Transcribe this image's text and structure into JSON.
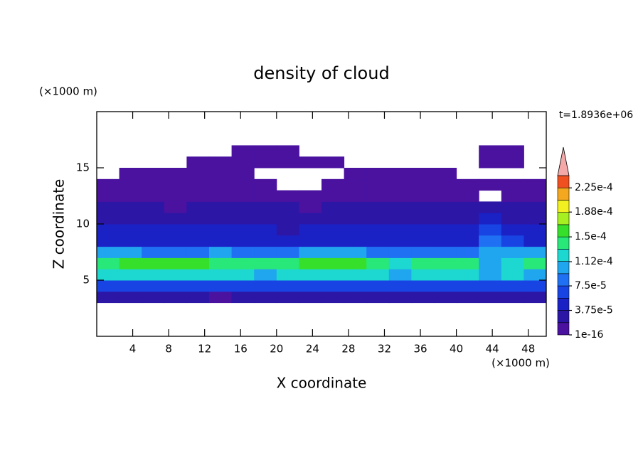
{
  "chart_data": {
    "type": "contour",
    "title": "density of cloud",
    "x_label": "X coordinate",
    "y_label": "Z coordinate",
    "x_unit": "(×1000 m)",
    "y_unit": "(×1000 m)",
    "time_label": "t=1.8936e+06",
    "xlim": [
      0,
      50
    ],
    "ylim": [
      0,
      20
    ],
    "xticks": [
      4,
      8,
      12,
      16,
      20,
      24,
      28,
      32,
      36,
      40,
      44,
      48
    ],
    "yticks": [
      5,
      10,
      15
    ],
    "xbins": [
      0,
      2.5,
      5,
      7.5,
      10,
      12.5,
      15,
      17.5,
      20,
      22.5,
      25,
      27.5,
      30,
      32.5,
      35,
      37.5,
      40,
      42.5,
      45,
      47.5,
      50
    ],
    "zbins": [
      0,
      1,
      2,
      3,
      4,
      5,
      6,
      7,
      8,
      9,
      10,
      11,
      12,
      13,
      14,
      15,
      16,
      17,
      18,
      19,
      20
    ],
    "values": [
      [
        null,
        null,
        null,
        null,
        null,
        null,
        null,
        null,
        null,
        null,
        null,
        null,
        null,
        null,
        null,
        null,
        null,
        null,
        null,
        null
      ],
      [
        null,
        null,
        null,
        null,
        null,
        null,
        null,
        null,
        null,
        null,
        null,
        null,
        null,
        null,
        null,
        null,
        null,
        null,
        null,
        null
      ],
      [
        null,
        null,
        null,
        null,
        null,
        null,
        null,
        null,
        null,
        null,
        null,
        null,
        null,
        null,
        null,
        null,
        null,
        null,
        null,
        null
      ],
      [
        2e-05,
        2.2e-05,
        1.9e-05,
        2.4e-05,
        2.1e-05,
        1.8e-05,
        2.3e-05,
        2e-05,
        2.2e-05,
        2.5e-05,
        2.1e-05,
        1.9e-05,
        2e-05,
        2.3e-05,
        2.1e-05,
        2e-05,
        2.2e-05,
        1.9e-05,
        2.1e-05,
        2e-05
      ],
      [
        6.5e-05,
        7e-05,
        6.8e-05,
        7.2e-05,
        6.6e-05,
        6.4e-05,
        7e-05,
        6.5e-05,
        6.8e-05,
        7.1e-05,
        6.9e-05,
        6.6e-05,
        6.2e-05,
        6.6e-05,
        6.8e-05,
        6.4e-05,
        6.6e-05,
        6.2e-05,
        6.5e-05,
        6.7e-05
      ],
      [
        0.00012,
        0.000125,
        0.00013,
        0.000128,
        0.00012,
        0.000115,
        0.000118,
        0.000112,
        0.00012,
        0.000125,
        0.000128,
        0.000122,
        0.000115,
        0.000112,
        0.00012,
        0.000115,
        0.000118,
        0.000105,
        0.000115,
        0.00011
      ],
      [
        0.000145,
        0.000155,
        0.00016,
        0.000158,
        0.00015,
        0.00014,
        0.000138,
        0.000135,
        0.000142,
        0.000152,
        0.000158,
        0.00015,
        0.00014,
        0.00013,
        0.000145,
        0.000135,
        0.000138,
        0.00011,
        0.00013,
        0.000132
      ],
      [
        9.5e-05,
        0.0001,
        9e-05,
        8.5e-05,
        8.8e-05,
        9.6e-05,
        9.2e-05,
        9e-05,
        8.5e-05,
        9.8e-05,
        0.000102,
        9.4e-05,
        8.8e-05,
        8.2e-05,
        8.6e-05,
        8.4e-05,
        8e-05,
        0.000105,
        9.5e-05,
        9.6e-05
      ],
      [
        5.2e-05,
        4.8e-05,
        5.5e-05,
        5e-05,
        4.6e-05,
        5.4e-05,
        4.9e-05,
        5.1e-05,
        4.7e-05,
        5.3e-05,
        5e-05,
        4.8e-05,
        5.2e-05,
        4.5e-05,
        4.9e-05,
        5.1e-05,
        4.6e-05,
        8e-05,
        6e-05,
        5.5e-05
      ],
      [
        4e-05,
        4.2e-05,
        3.8e-05,
        4.4e-05,
        4.1e-05,
        3.9e-05,
        4.3e-05,
        4e-05,
        3.7e-05,
        4.2e-05,
        4e-05,
        3.8e-05,
        4.1e-05,
        3.9e-05,
        4.2e-05,
        4e-05,
        4.3e-05,
        7e-05,
        5e-05,
        4.4e-05
      ],
      [
        3e-05,
        2.8e-05,
        3.2e-05,
        2.9e-05,
        3.1e-05,
        2.7e-05,
        3e-05,
        3.3e-05,
        2.8e-05,
        3e-05,
        3.1e-05,
        2.9e-05,
        3.2e-05,
        2.8e-05,
        3e-05,
        3.1e-05,
        2.9e-05,
        5e-05,
        3.5e-05,
        3e-05
      ],
      [
        2e-05,
        1.9e-05,
        2.1e-05,
        1.8e-05,
        2e-05,
        2.2e-05,
        1.9e-05,
        2e-05,
        2.1e-05,
        1.8e-05,
        2e-05,
        2.1e-05,
        1.9e-05,
        2e-05,
        2.2e-05,
        1.9e-05,
        2e-05,
        2.5e-05,
        2.1e-05,
        2e-05
      ],
      [
        1.2e-05,
        1e-05,
        1.1e-05,
        9e-06,
        1e-05,
        1.2e-05,
        1e-05,
        8e-06,
        1.1e-05,
        1e-05,
        9e-06,
        1.1e-05,
        1e-05,
        1.2e-05,
        9e-06,
        1e-05,
        1.1e-05,
        null,
        1e-05,
        1.2e-05
      ],
      [
        3e-06,
        3e-06,
        3e-06,
        3e-06,
        3e-06,
        3e-06,
        3e-06,
        3e-06,
        null,
        null,
        3e-06,
        3e-06,
        3e-06,
        3e-06,
        3e-06,
        3e-06,
        3e-06,
        3e-06,
        3e-06,
        3e-06
      ],
      [
        null,
        3e-06,
        3e-06,
        3e-06,
        3e-06,
        3e-06,
        3e-06,
        null,
        null,
        null,
        null,
        3e-06,
        3e-06,
        3e-06,
        3e-06,
        3e-06,
        null,
        null,
        null,
        null
      ],
      [
        null,
        null,
        null,
        null,
        3e-06,
        3e-06,
        3e-06,
        3e-06,
        3e-06,
        3e-06,
        3e-06,
        null,
        null,
        null,
        null,
        null,
        null,
        3e-06,
        3e-06,
        null
      ],
      [
        null,
        null,
        null,
        null,
        null,
        null,
        3e-06,
        3e-06,
        3e-06,
        null,
        null,
        null,
        null,
        null,
        null,
        null,
        null,
        3e-06,
        3e-06,
        null
      ],
      [
        null,
        null,
        null,
        null,
        null,
        null,
        null,
        null,
        null,
        null,
        null,
        null,
        null,
        null,
        null,
        null,
        null,
        null,
        null,
        null
      ],
      [
        null,
        null,
        null,
        null,
        null,
        null,
        null,
        null,
        null,
        null,
        null,
        null,
        null,
        null,
        null,
        null,
        null,
        null,
        null,
        null
      ],
      [
        null,
        null,
        null,
        null,
        null,
        null,
        null,
        null,
        null,
        null,
        null,
        null,
        null,
        null,
        null,
        null,
        null,
        null,
        null,
        null
      ]
    ],
    "colorbar": {
      "levels": [
        1e-16,
        1.875e-05,
        3.75e-05,
        5.625e-05,
        7.5e-05,
        9.375e-05,
        0.0001125,
        0.00013125,
        0.00015,
        0.00016875,
        0.0001875,
        0.00020625,
        0.000225,
        0.00024375
      ],
      "colors": [
        "#4b12a0",
        "#2c16a6",
        "#1a22c6",
        "#1844e4",
        "#1f70f2",
        "#20a6ee",
        "#1cd8d0",
        "#28e87a",
        "#36e02a",
        "#a6f022",
        "#f2f020",
        "#f4a820",
        "#f05020"
      ],
      "extend_color": "#f4a8a8",
      "ticks": [
        {
          "value": 1e-16,
          "label": "1e-16"
        },
        {
          "value": 3.75e-05,
          "label": "3.75e-5"
        },
        {
          "value": 7.5e-05,
          "label": "7.5e-5"
        },
        {
          "value": 0.000112,
          "label": "1.12e-4"
        },
        {
          "value": 0.00015,
          "label": "1.5e-4"
        },
        {
          "value": 0.000188,
          "label": "1.88e-4"
        },
        {
          "value": 0.000225,
          "label": "2.25e-4"
        }
      ]
    }
  }
}
